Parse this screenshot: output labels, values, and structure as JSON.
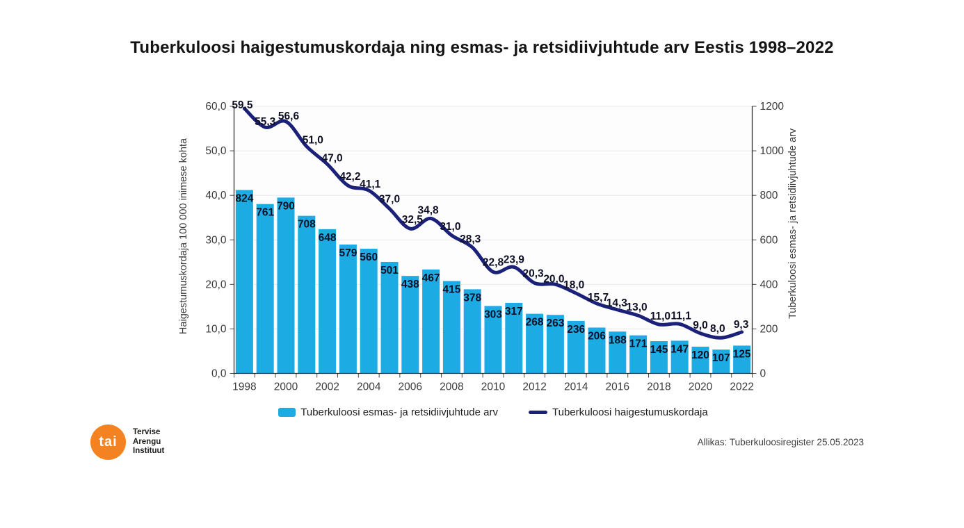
{
  "title": "Tuberkuloosi haigestumuskordaja ning esmas- ja retsidiivjuhtude arv Eestis 1998–2022",
  "chart_data": {
    "type": "combo",
    "x": [
      1998,
      1999,
      2000,
      2001,
      2002,
      2003,
      2004,
      2005,
      2006,
      2007,
      2008,
      2009,
      2010,
      2011,
      2012,
      2013,
      2014,
      2015,
      2016,
      2017,
      2018,
      2019,
      2020,
      2021,
      2022
    ],
    "x_tick_labels": [
      "1998",
      "2000",
      "2002",
      "2004",
      "2006",
      "2008",
      "2010",
      "2012",
      "2014",
      "2016",
      "2018",
      "2020",
      "2022"
    ],
    "series": [
      {
        "name": "Tuberkuloosi esmas- ja retsidiivjuhtude arv",
        "type": "bar",
        "axis": "right",
        "color": "#1CACE3",
        "values": [
          824,
          761,
          790,
          708,
          648,
          579,
          560,
          501,
          438,
          467,
          415,
          378,
          303,
          317,
          268,
          263,
          236,
          206,
          188,
          171,
          145,
          147,
          120,
          107,
          125
        ],
        "labels": [
          "824",
          "761",
          "790",
          "708",
          "648",
          "579",
          "560",
          "501",
          "438",
          "467",
          "415",
          "378",
          "303",
          "317",
          "268",
          "263",
          "236",
          "206",
          "188",
          "171",
          "145",
          "147",
          "120",
          "107",
          "125"
        ]
      },
      {
        "name": "Tuberkuloosi haigestumuskordaja",
        "type": "line",
        "axis": "left",
        "color": "#1B2178",
        "values": [
          59.5,
          55.3,
          56.6,
          51.0,
          47.0,
          42.2,
          41.1,
          37.0,
          32.5,
          34.8,
          31.0,
          28.3,
          22.8,
          23.9,
          20.3,
          20.0,
          18.0,
          15.7,
          14.3,
          13.0,
          11.0,
          11.1,
          9.0,
          8.0,
          9.3
        ],
        "labels": [
          "59,5",
          "55,3",
          "56,6",
          "51,0",
          "47,0",
          "42,2",
          "41,1",
          "37,0",
          "32,5",
          "34,8",
          "31,0",
          "28,3",
          "22,8",
          "23,9",
          "20,3",
          "20,0",
          "18,0",
          "15,7",
          "14,3",
          "13,0",
          "11,0",
          "11,1",
          "9,0",
          "8,0",
          "9,3"
        ]
      }
    ],
    "left_axis": {
      "label": "Haigestumuskordaja 100 000 inimese kohta",
      "tick_values": [
        0,
        10,
        20,
        30,
        40,
        50,
        60
      ],
      "tick_labels": [
        "0,0",
        "10,0",
        "20,0",
        "30,0",
        "40,0",
        "50,0",
        "60,0"
      ],
      "range": [
        0,
        60
      ]
    },
    "right_axis": {
      "label": "Tuberkuloosi esmas- ja retsidiivjuhtude arv",
      "tick_values": [
        0,
        200,
        400,
        600,
        800,
        1000,
        1200
      ],
      "tick_labels": [
        "0",
        "200",
        "400",
        "600",
        "800",
        "1000",
        "1200"
      ],
      "range": [
        0,
        1200
      ]
    },
    "grid": "horizontal",
    "legend_position": "bottom"
  },
  "legend": [
    {
      "label": "Tuberkuloosi esmas- ja retsidiivjuhtude arv",
      "marker": "bar-swatch",
      "color": "#1CACE3"
    },
    {
      "label": "Tuberkuloosi haigestumuskordaja",
      "marker": "line-swatch",
      "color": "#1B2178"
    }
  ],
  "source": "Allikas: Tuberkuloosiregister 25.05.2023",
  "logo": {
    "text": "tai",
    "lines": [
      "Tervise",
      "Arengu",
      "Instituut"
    ],
    "color": "#F58220"
  },
  "colors": {
    "data_label": "#0F1026",
    "tick_text": "#3B3B3B",
    "gridline": "#E9E9E9",
    "spine": "#2E2E2E",
    "title_text": "#141414"
  }
}
